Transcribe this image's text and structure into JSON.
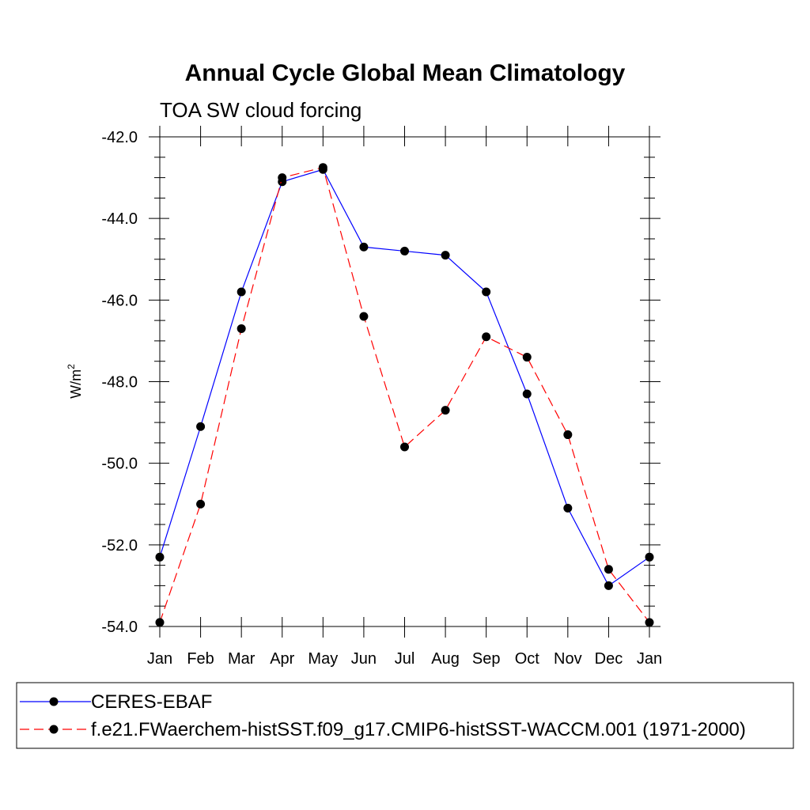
{
  "chart_data": {
    "type": "line",
    "title": "Annual Cycle Global Mean Climatology",
    "subtitle": "TOA SW cloud forcing",
    "xlabel": "",
    "ylabel": "W/m",
    "ylabel_superscript": "2",
    "categories": [
      "Jan",
      "Feb",
      "Mar",
      "Apr",
      "May",
      "Jun",
      "Jul",
      "Aug",
      "Sep",
      "Oct",
      "Nov",
      "Dec",
      "Jan"
    ],
    "ylim": [
      -54.0,
      -42.0
    ],
    "yticks": [
      -42.0,
      -44.0,
      -46.0,
      -48.0,
      -50.0,
      -52.0,
      -54.0
    ],
    "ytick_labels": [
      "-42.0",
      "-44.0",
      "-46.0",
      "-48.0",
      "-50.0",
      "-52.0",
      "-54.0"
    ],
    "grid": false,
    "legend_position": "bottom",
    "series": [
      {
        "name": "CERES-EBAF",
        "color": "#0000ff",
        "line_style": "solid",
        "marker": "filled-circle",
        "values": [
          -52.3,
          -49.1,
          -45.8,
          -43.1,
          -42.8,
          -44.7,
          -44.8,
          -44.9,
          -45.8,
          -48.3,
          -51.1,
          -53.0,
          -52.3
        ]
      },
      {
        "name": "f.e21.FWaerchem-histSST.f09_g17.CMIP6-histSST-WACCM.001 (1971-2000)",
        "color": "#ff0000",
        "line_style": "dashed",
        "marker": "filled-circle",
        "values": [
          -53.9,
          -51.0,
          -46.7,
          -43.0,
          -42.75,
          -46.4,
          -49.6,
          -48.7,
          -46.9,
          -47.4,
          -49.3,
          -52.6,
          -53.9
        ]
      }
    ]
  }
}
